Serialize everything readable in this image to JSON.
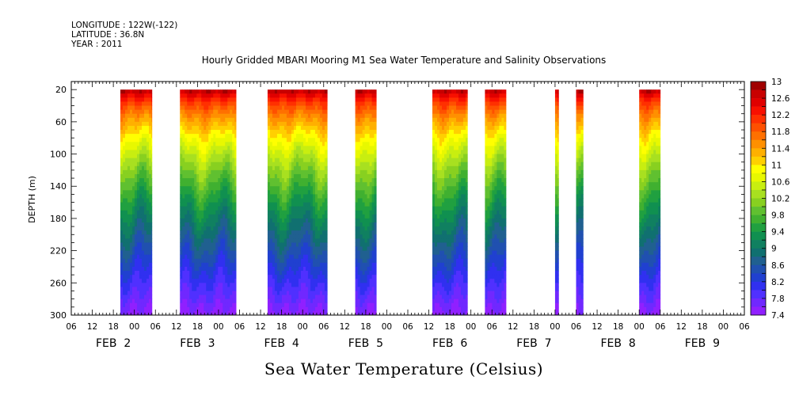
{
  "header": {
    "longitude": "LONGITUDE : 122W(-122)",
    "latitude": "LATITUDE : 36.8N",
    "year": "YEAR : 2011"
  },
  "chart_data": {
    "type": "heatmap",
    "title": "Hourly Gridded MBARI Mooring M1 Sea Water Temperature and Salinity Observations",
    "footer": "Sea Water Temperature (Celsius)",
    "ylabel": "DEPTH (m)",
    "y_axis": {
      "inverted": true,
      "range": [
        10,
        300
      ],
      "ticks": [
        20,
        60,
        100,
        140,
        180,
        220,
        260,
        300
      ]
    },
    "x_axis": {
      "range_hours": [
        0,
        192
      ],
      "hour_labels": [
        "06",
        "12",
        "18",
        "00",
        "06",
        "12",
        "18",
        "00",
        "06",
        "12",
        "18",
        "00",
        "06",
        "12",
        "18",
        "00",
        "06",
        "12",
        "18",
        "00",
        "06",
        "12",
        "18",
        "00",
        "06",
        "12",
        "18",
        "00",
        "06",
        "12",
        "18",
        "00",
        "06"
      ],
      "day_labels": [
        {
          "text": "FEB  2",
          "at_hour": 12
        },
        {
          "text": "FEB  3",
          "at_hour": 36
        },
        {
          "text": "FEB  4",
          "at_hour": 60
        },
        {
          "text": "FEB  5",
          "at_hour": 84
        },
        {
          "text": "FEB  6",
          "at_hour": 108
        },
        {
          "text": "FEB  7",
          "at_hour": 132
        },
        {
          "text": "FEB  8",
          "at_hour": 156
        },
        {
          "text": "FEB  9",
          "at_hour": 180
        }
      ]
    },
    "data_segments_hours": [
      [
        14,
        23
      ],
      [
        31,
        47
      ],
      [
        56,
        73
      ],
      [
        81,
        87
      ],
      [
        103,
        113
      ],
      [
        118,
        124
      ],
      [
        138,
        139
      ],
      [
        144,
        146
      ],
      [
        162,
        168
      ]
    ],
    "surface_temperature": 13,
    "bottom_temperature": 7.5,
    "colorbar": {
      "min": 7.4,
      "max": 13,
      "step": 0.2,
      "labels": [
        "13",
        "12.6",
        "12.2",
        "11.8",
        "11.4",
        "11",
        "10.6",
        "10.2",
        "9.8",
        "9.4",
        "9",
        "8.6",
        "8.2",
        "7.8",
        "7.4"
      ],
      "colors_high_to_low": [
        "#a00000",
        "#c80000",
        "#e00000",
        "#f81000",
        "#ff3000",
        "#ff5000",
        "#ff7000",
        "#ff9000",
        "#ffb000",
        "#ffd000",
        "#ffff00",
        "#e8f800",
        "#c8ee10",
        "#a8e020",
        "#88d020",
        "#60c030",
        "#40b030",
        "#20a040",
        "#109050",
        "#108060",
        "#107070",
        "#206090",
        "#2050b0",
        "#2040d0",
        "#3030f0",
        "#5030ff",
        "#7028ff",
        "#9020ff"
      ]
    }
  }
}
